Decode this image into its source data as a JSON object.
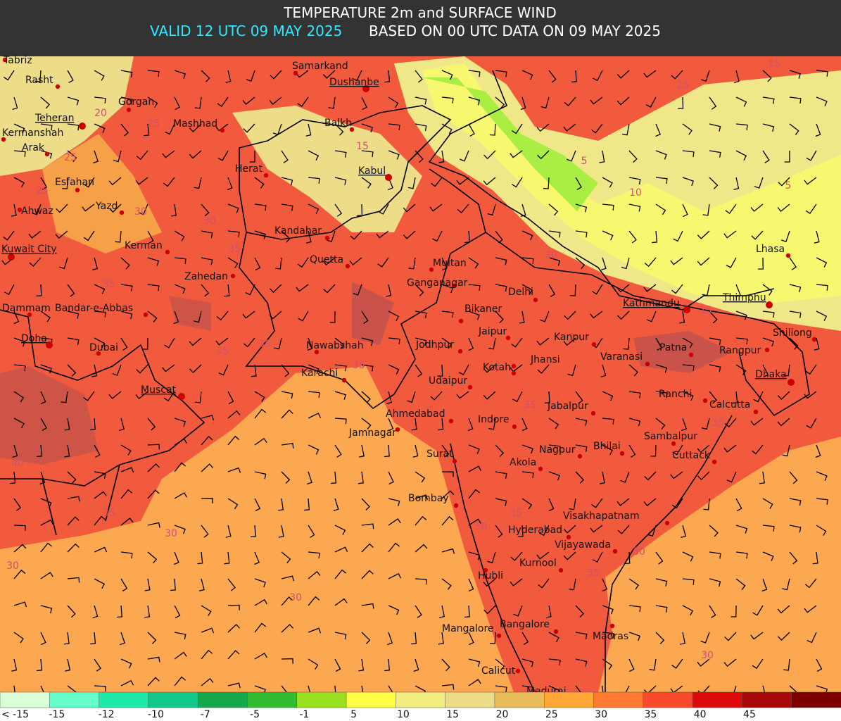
{
  "header": {
    "title": "TEMPERATURE 2m and SURFACE WIND",
    "valid": "VALID 12 UTC 09 MAY 2025",
    "based": "BASED ON 00 UTC DATA ON 09 MAY 2025"
  },
  "legend": {
    "labels": [
      "< -15",
      "-15",
      "-12",
      "-10",
      "-7",
      "-5",
      "-1",
      "5",
      "10",
      "15",
      "20",
      "25",
      "30",
      "35",
      "40",
      "45"
    ],
    "colors": [
      "#d8ffd8",
      "#66ffcc",
      "#1ee8aa",
      "#12c888",
      "#16a84c",
      "#30bb30",
      "#99e020",
      "#ffff44",
      "#f0ec80",
      "#ecdc88",
      "#e8bc58",
      "#ffa838",
      "#ff7a30",
      "#f84a2a",
      "#dc0a0a",
      "#a80808",
      "#7c0000"
    ]
  },
  "cities": [
    {
      "name": "Tabriz"
    },
    {
      "name": "Rasht"
    },
    {
      "name": "Gorgan"
    },
    {
      "name": "Teheran",
      "capital": true
    },
    {
      "name": "Kermanshah"
    },
    {
      "name": "Arak"
    },
    {
      "name": "Mashhad"
    },
    {
      "name": "Samarkand"
    },
    {
      "name": "Dushanbe",
      "capital": true
    },
    {
      "name": "Balkh"
    },
    {
      "name": "Herat"
    },
    {
      "name": "Kabul",
      "capital": true
    },
    {
      "name": "Esfahan"
    },
    {
      "name": "Yazd"
    },
    {
      "name": "Ahwaz"
    },
    {
      "name": "Kandahar"
    },
    {
      "name": "Kerman"
    },
    {
      "name": "Kuwait City",
      "capital": true
    },
    {
      "name": "Quetta"
    },
    {
      "name": "Multan"
    },
    {
      "name": "Zahedan"
    },
    {
      "name": "Ganganagar"
    },
    {
      "name": "Delhi"
    },
    {
      "name": "Dammam"
    },
    {
      "name": "Bandar-e-Abbas"
    },
    {
      "name": "Bikaner"
    },
    {
      "name": "Kathmandu",
      "capital": true
    },
    {
      "name": "Thimphu",
      "capital": true
    },
    {
      "name": "Lhasa"
    },
    {
      "name": "Shillong"
    },
    {
      "name": "Jaipur"
    },
    {
      "name": "Kanpur"
    },
    {
      "name": "Doha",
      "capital": true
    },
    {
      "name": "Dubai"
    },
    {
      "name": "Nawabshah"
    },
    {
      "name": "Jodhpur"
    },
    {
      "name": "Patna"
    },
    {
      "name": "Rangpur"
    },
    {
      "name": "Jhansi"
    },
    {
      "name": "Varanasi"
    },
    {
      "name": "Kotah"
    },
    {
      "name": "Karachi"
    },
    {
      "name": "Dhaka",
      "capital": true
    },
    {
      "name": "Udaipur"
    },
    {
      "name": "Muscat",
      "capital": true
    },
    {
      "name": "Ranchi"
    },
    {
      "name": "Calcutta"
    },
    {
      "name": "Ahmedabad"
    },
    {
      "name": "Jabalpur"
    },
    {
      "name": "Indore"
    },
    {
      "name": "Jamnagar"
    },
    {
      "name": "Sambalpur"
    },
    {
      "name": "Surat"
    },
    {
      "name": "Nagpur"
    },
    {
      "name": "Bhilai"
    },
    {
      "name": "Cuttack"
    },
    {
      "name": "Akola"
    },
    {
      "name": "Bombay"
    },
    {
      "name": "Visakhapatnam"
    },
    {
      "name": "Hyderabad"
    },
    {
      "name": "Vijayawada"
    },
    {
      "name": "Kurnool"
    },
    {
      "name": "Hubli"
    },
    {
      "name": "Bangalore"
    },
    {
      "name": "Mangalore"
    },
    {
      "name": "Madras"
    },
    {
      "name": "Calicut"
    },
    {
      "name": "Madurai"
    }
  ],
  "contour_labels": [
    "20",
    "25",
    "25",
    "25",
    "30",
    "30",
    "35",
    "35",
    "35",
    "35",
    "35",
    "40",
    "35",
    "30",
    "30",
    "30",
    "35",
    "35",
    "35",
    "30",
    "35",
    "30",
    "30",
    "15",
    "10",
    "5",
    "5",
    "15",
    "25",
    "20",
    "15"
  ]
}
